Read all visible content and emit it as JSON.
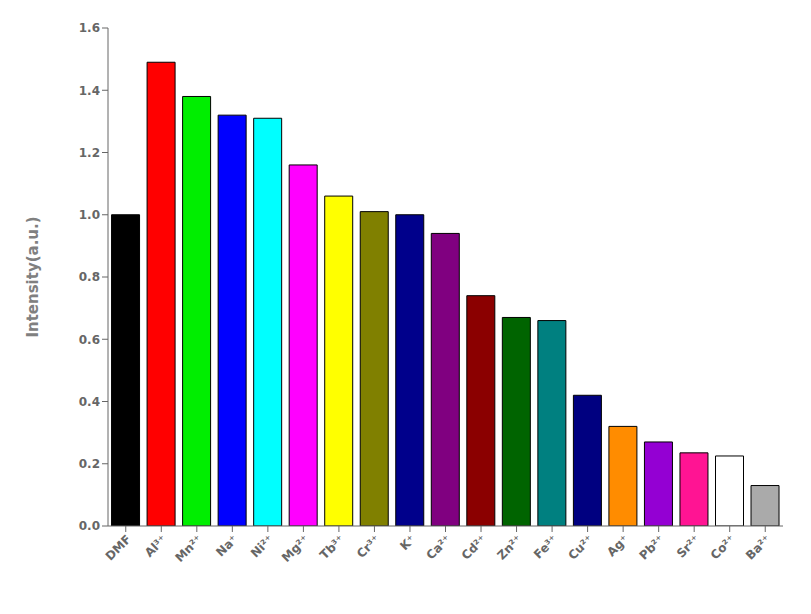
{
  "chart_data": {
    "type": "bar",
    "ylabel": "Intensity(a.u.)",
    "categories": [
      "DMF",
      "Al³⁺",
      "Mn²⁺",
      "Na⁺",
      "Ni²⁺",
      "Mg²⁺",
      "Tb³⁺",
      "Cr³⁺",
      "K⁺",
      "Ca²⁺",
      "Cd²⁺",
      "Zn²⁺",
      "Fe³⁺",
      "Cu²⁺",
      "Ag⁺",
      "Pb²⁺",
      "Sr²⁺",
      "Co²⁺",
      "Ba²⁺"
    ],
    "values": [
      1.0,
      1.49,
      1.38,
      1.32,
      1.31,
      1.16,
      1.06,
      1.01,
      1.0,
      0.94,
      0.74,
      0.67,
      0.66,
      0.42,
      0.32,
      0.27,
      0.235,
      0.225,
      0.13
    ],
    "colors": [
      "#000000",
      "#ff0000",
      "#00ee00",
      "#0000ff",
      "#00ffff",
      "#ff00ff",
      "#ffff00",
      "#808000",
      "#00008b",
      "#800080",
      "#8b0000",
      "#006400",
      "#008080",
      "#000080",
      "#ff8c00",
      "#9400d3",
      "#ff1493",
      "#ffffff",
      "#aaaaaa"
    ],
    "ylim": [
      0.0,
      1.6
    ],
    "yticks": [
      {
        "value": 0.0,
        "label": "0.0"
      },
      0.2,
      0.4,
      0.6,
      0.8,
      {
        "value": 1.0,
        "label": "1.0"
      },
      1.2,
      1.4,
      1.6
    ],
    "grid": false
  }
}
